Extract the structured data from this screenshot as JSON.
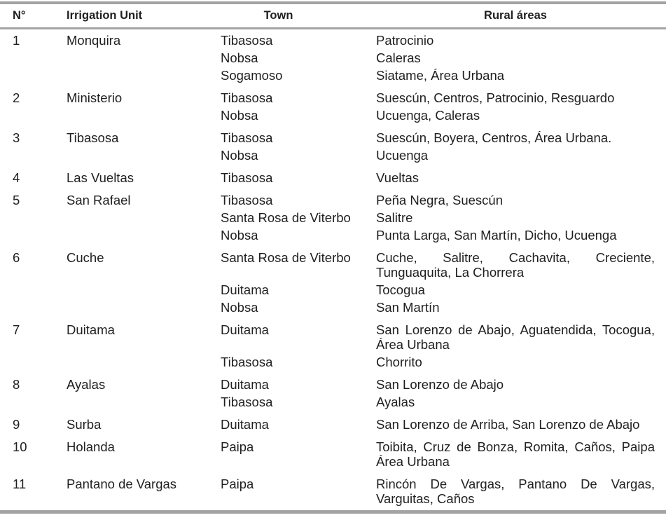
{
  "colors": {
    "text": "#1f1f1f",
    "rule": "#a3a3a3"
  },
  "table": {
    "headers": {
      "num": "N°",
      "unit": "Irrigation Unit",
      "town": "Town",
      "rural": "Rural áreas"
    },
    "rows": [
      {
        "num": "1",
        "unit": "Monquira",
        "pairs": [
          {
            "town": "Tibasosa",
            "rural": "Patrocinio"
          },
          {
            "town": "Nobsa",
            "rural": "Caleras"
          },
          {
            "town": "Sogamoso",
            "rural": "Siatame, Área Urbana"
          }
        ]
      },
      {
        "num": "2",
        "unit": "Ministerio",
        "pairs": [
          {
            "town": "Tibasosa",
            "rural": "Suescún, Centros, Patrocinio, Resguardo"
          },
          {
            "town": "Nobsa",
            "rural": "Ucuenga, Caleras"
          }
        ]
      },
      {
        "num": "3",
        "unit": "Tibasosa",
        "pairs": [
          {
            "town": "Tibasosa",
            "rural": "Suescún, Boyera, Centros, Área Urbana."
          },
          {
            "town": "Nobsa",
            "rural": "Ucuenga"
          }
        ]
      },
      {
        "num": "4",
        "unit": "Las Vueltas",
        "pairs": [
          {
            "town": "Tibasosa",
            "rural": "Vueltas"
          }
        ]
      },
      {
        "num": "5",
        "unit": "San Rafael",
        "pairs": [
          {
            "town": "Tibasosa",
            "rural": "Peña Negra, Suescún"
          },
          {
            "town": "Santa Rosa de Viterbo",
            "rural": "Salitre"
          },
          {
            "town": "Nobsa",
            "rural": "Punta Larga, San Martín, Dicho, Ucuenga"
          }
        ]
      },
      {
        "num": "6",
        "unit": "Cuche",
        "pairs": [
          {
            "town": "Santa Rosa de Viterbo",
            "rural": "Cuche, Salitre, Cachavita, Creciente, Tunguaquita, La Chorrera"
          },
          {
            "town": "Duitama",
            "rural": "Tocogua"
          },
          {
            "town": "Nobsa",
            "rural": "San Martín"
          }
        ]
      },
      {
        "num": "7",
        "unit": "Duitama",
        "pairs": [
          {
            "town": "Duitama",
            "rural": "San Lorenzo de Abajo, Aguatendida, Tocogua, Área Urbana"
          },
          {
            "town": "Tibasosa",
            "rural": "Chorrito"
          }
        ]
      },
      {
        "num": "8",
        "unit": "Ayalas",
        "pairs": [
          {
            "town": "Duitama",
            "rural": "San Lorenzo de Abajo"
          },
          {
            "town": "Tibasosa",
            "rural": "Ayalas"
          }
        ]
      },
      {
        "num": "9",
        "unit": "Surba",
        "pairs": [
          {
            "town": "Duitama",
            "rural": "San Lorenzo de Arriba, San Lorenzo de Abajo"
          }
        ]
      },
      {
        "num": "10",
        "unit": "Holanda",
        "pairs": [
          {
            "town": "Paipa",
            "rural": "Toibita, Cruz de Bonza, Romita, Caños, Paipa Área Urbana"
          }
        ]
      },
      {
        "num": "11",
        "unit": "Pantano de Vargas",
        "pairs": [
          {
            "town": "Paipa",
            "rural": "Rincón De Vargas, Pantano De Vargas, Varguitas, Caños"
          }
        ]
      }
    ]
  }
}
